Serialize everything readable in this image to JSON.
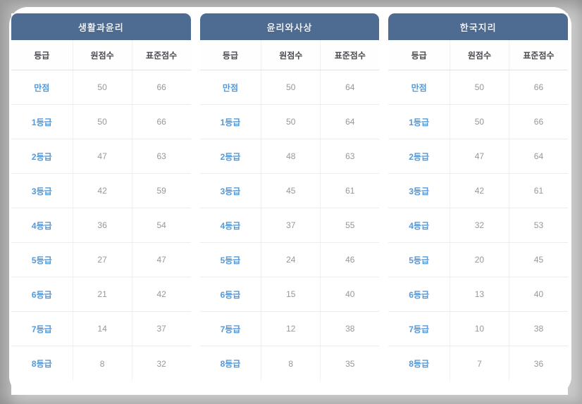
{
  "columns": {
    "grade": "등급",
    "raw_score": "원점수",
    "standard_score": "표준점수"
  },
  "tables": [
    {
      "title": "생활과윤리",
      "rows": [
        {
          "grade": "만점",
          "raw": "50",
          "std": "66"
        },
        {
          "grade": "1등급",
          "raw": "50",
          "std": "66"
        },
        {
          "grade": "2등급",
          "raw": "47",
          "std": "63"
        },
        {
          "grade": "3등급",
          "raw": "42",
          "std": "59"
        },
        {
          "grade": "4등급",
          "raw": "36",
          "std": "54"
        },
        {
          "grade": "5등급",
          "raw": "27",
          "std": "47"
        },
        {
          "grade": "6등급",
          "raw": "21",
          "std": "42"
        },
        {
          "grade": "7등급",
          "raw": "14",
          "std": "37"
        },
        {
          "grade": "8등급",
          "raw": "8",
          "std": "32"
        }
      ]
    },
    {
      "title": "윤리와사상",
      "rows": [
        {
          "grade": "만점",
          "raw": "50",
          "std": "64"
        },
        {
          "grade": "1등급",
          "raw": "50",
          "std": "64"
        },
        {
          "grade": "2등급",
          "raw": "48",
          "std": "63"
        },
        {
          "grade": "3등급",
          "raw": "45",
          "std": "61"
        },
        {
          "grade": "4등급",
          "raw": "37",
          "std": "55"
        },
        {
          "grade": "5등급",
          "raw": "24",
          "std": "46"
        },
        {
          "grade": "6등급",
          "raw": "15",
          "std": "40"
        },
        {
          "grade": "7등급",
          "raw": "12",
          "std": "38"
        },
        {
          "grade": "8등급",
          "raw": "8",
          "std": "35"
        }
      ]
    },
    {
      "title": "한국지리",
      "rows": [
        {
          "grade": "만점",
          "raw": "50",
          "std": "66"
        },
        {
          "grade": "1등급",
          "raw": "50",
          "std": "66"
        },
        {
          "grade": "2등급",
          "raw": "47",
          "std": "64"
        },
        {
          "grade": "3등급",
          "raw": "42",
          "std": "61"
        },
        {
          "grade": "4등급",
          "raw": "32",
          "std": "53"
        },
        {
          "grade": "5등급",
          "raw": "20",
          "std": "45"
        },
        {
          "grade": "6등급",
          "raw": "13",
          "std": "40"
        },
        {
          "grade": "7등급",
          "raw": "10",
          "std": "38"
        },
        {
          "grade": "8등급",
          "raw": "7",
          "std": "36"
        }
      ]
    }
  ],
  "colors": {
    "frame_gray": "#c9c9c9",
    "panel_white": "#ffffff",
    "title_bar_blue": "#4e6c92",
    "title_text": "#eef1f6",
    "header_text": "#4b4b52",
    "grade_blue": "#5498d7",
    "number_gray": "#97979c",
    "row_divider": "#ededf0"
  }
}
